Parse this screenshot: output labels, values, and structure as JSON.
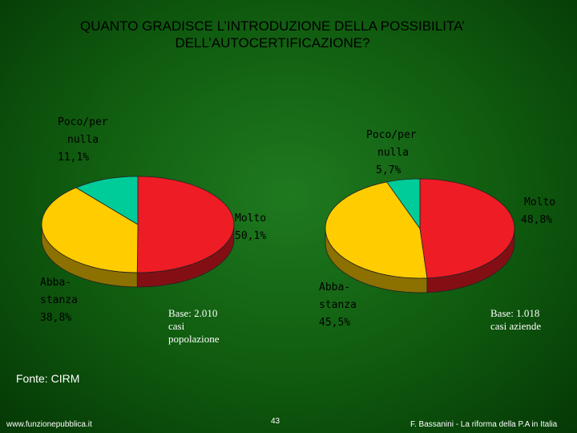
{
  "slide": {
    "title_line1": "QUANTO GRADISCE L’INTRODUZIONE DELLA POSSIBILITA’",
    "title_line2": "DELL’AUTOCERTIFICAZIONE?",
    "source": "Fonte: CIRM",
    "website": "www.funzionepubblica.it",
    "page_number": "43",
    "author": "F. Bassanini - La riforma della P.A in Italia"
  },
  "chart_data": [
    {
      "type": "pie",
      "labels": [
        "Molto",
        "Abba-stanza",
        "Poco/per nulla"
      ],
      "values": [
        50.1,
        38.8,
        11.1
      ],
      "value_labels": [
        "50,1%",
        "38,8%",
        "11,1%"
      ],
      "colors": [
        "#ee1c24",
        "#ffcc00",
        "#00cc99"
      ],
      "base_line1": "Base: 2.010",
      "base_line2": "casi",
      "base_line3": "popolazione"
    },
    {
      "type": "pie",
      "labels": [
        "Molto",
        "Abba-stanza",
        "Poco/per nulla"
      ],
      "values": [
        48.8,
        45.5,
        5.7
      ],
      "value_labels": [
        "48,8%",
        "45,5%",
        "5,7%"
      ],
      "colors": [
        "#ee1c24",
        "#ffcc00",
        "#00cc99"
      ],
      "base_line1": "Base: 1.018",
      "base_line2": "casi aziende"
    }
  ],
  "pie_labels": {
    "molto": "Molto",
    "abba_1": "Abba-",
    "abba_2": "stanza",
    "poco_1": "Poco/per",
    "poco_2": "nulla"
  }
}
